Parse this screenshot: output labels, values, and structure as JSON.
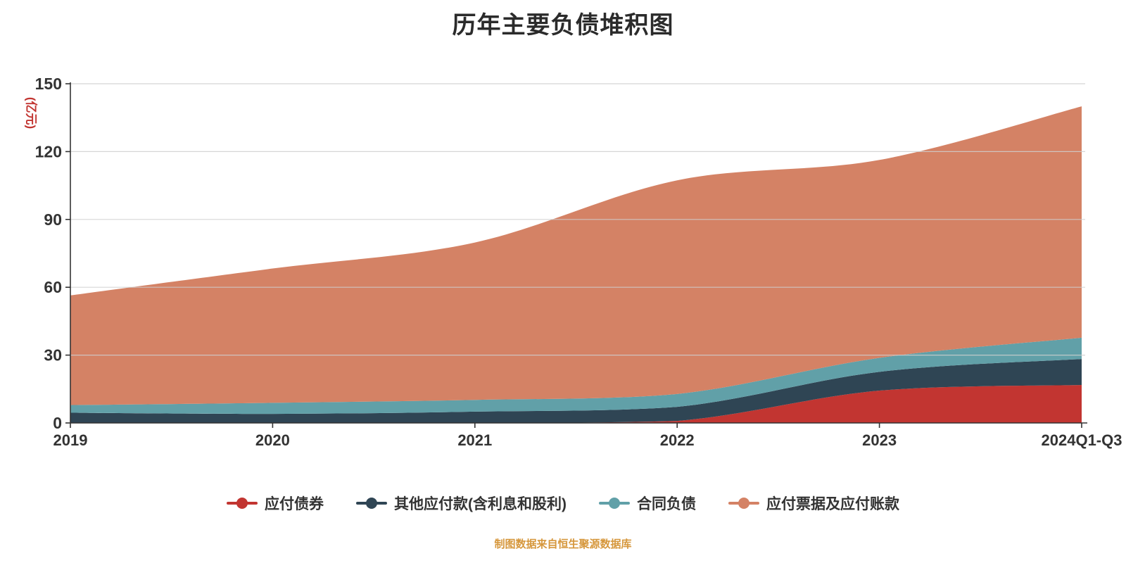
{
  "title": "历年主要负债堆积图",
  "axes": {
    "y_unit": "(亿元)",
    "y_unit_color": "#c23531",
    "y_ticks": [
      0,
      30,
      60,
      90,
      120,
      150
    ],
    "x_labels": [
      "2019",
      "2020",
      "2021",
      "2022",
      "2023",
      "2024Q1-Q3"
    ]
  },
  "footer": {
    "text": "制图数据来自恒生聚源数据库",
    "color": "#d6973c"
  },
  "chart_data": {
    "type": "area",
    "stacked": true,
    "smooth": true,
    "title": "历年主要负债堆积图",
    "xlabel": "",
    "ylabel": "(亿元)",
    "ylim": [
      0,
      150
    ],
    "grid": true,
    "legend_position": "bottom",
    "categories": [
      "2019",
      "2020",
      "2021",
      "2022",
      "2023",
      "2024Q1-Q3"
    ],
    "series": [
      {
        "name": "应付债券",
        "color": "#c23531",
        "values": [
          0,
          0,
          0,
          0.9,
          14.3,
          16.8
        ]
      },
      {
        "name": "其他应付款(含利息和股利)",
        "color": "#2f4554",
        "values": [
          4.5,
          4.0,
          5.0,
          6.2,
          8.3,
          11.5
        ]
      },
      {
        "name": "合同负债",
        "color": "#61a0a8",
        "values": [
          3.4,
          4.9,
          5.2,
          5.7,
          6.2,
          9.4
        ]
      },
      {
        "name": "应付票据及应付账款",
        "color": "#d48265",
        "values": [
          48.5,
          59.4,
          69.6,
          94.5,
          87.5,
          102.3
        ]
      }
    ],
    "stack_totals": [
      56.4,
      68.3,
      79.8,
      107.3,
      116.3,
      140.0
    ]
  }
}
